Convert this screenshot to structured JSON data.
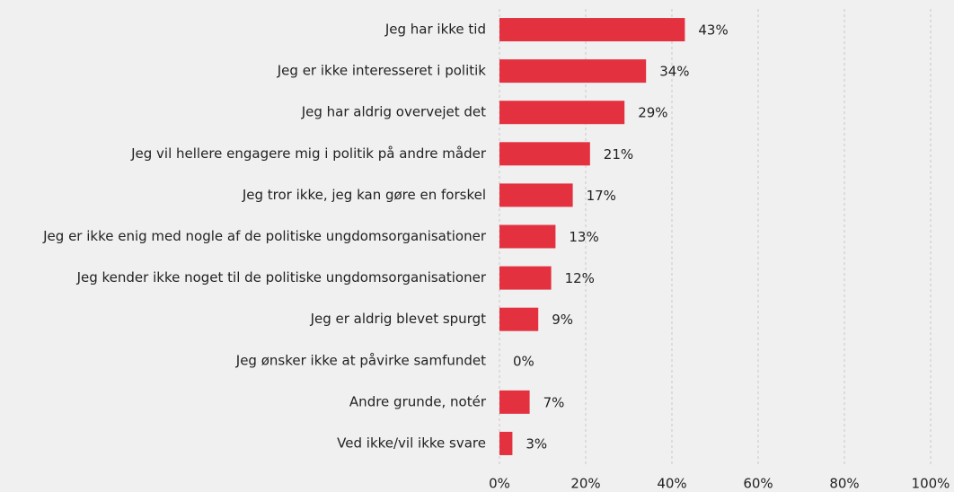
{
  "chart_data": {
    "type": "barh",
    "categories": [
      "Jeg har ikke tid",
      "Jeg er ikke interesseret i politik",
      "Jeg har aldrig overvejet det",
      "Jeg vil hellere engagere mig i politik på andre måder",
      "Jeg tror ikke, jeg kan gøre en forskel",
      "Jeg er ikke enig med nogle af de politiske ungdomsorganisationer",
      "Jeg kender ikke noget til de politiske ungdomsorganisationer",
      "Jeg er aldrig blevet spurgt",
      "Jeg ønsker ikke at påvirke samfundet",
      "Andre grunde, notér",
      "Ved ikke/vil ikke svare"
    ],
    "values": [
      43,
      34,
      29,
      21,
      17,
      13,
      12,
      9,
      0,
      7,
      3
    ],
    "value_labels": [
      "43%",
      "34%",
      "29%",
      "21%",
      "17%",
      "13%",
      "12%",
      "9%",
      "0%",
      "7%",
      "3%"
    ],
    "color": "#e3313f",
    "xlim": [
      0,
      100
    ],
    "xticks": [
      {
        "value": 0,
        "label": "0%"
      },
      {
        "value": 20,
        "label": "20%"
      },
      {
        "value": 40,
        "label": "40%"
      },
      {
        "value": 60,
        "label": "60%"
      },
      {
        "value": 80,
        "label": "80%"
      },
      {
        "value": 100,
        "label": "100%"
      }
    ],
    "grid": true
  }
}
